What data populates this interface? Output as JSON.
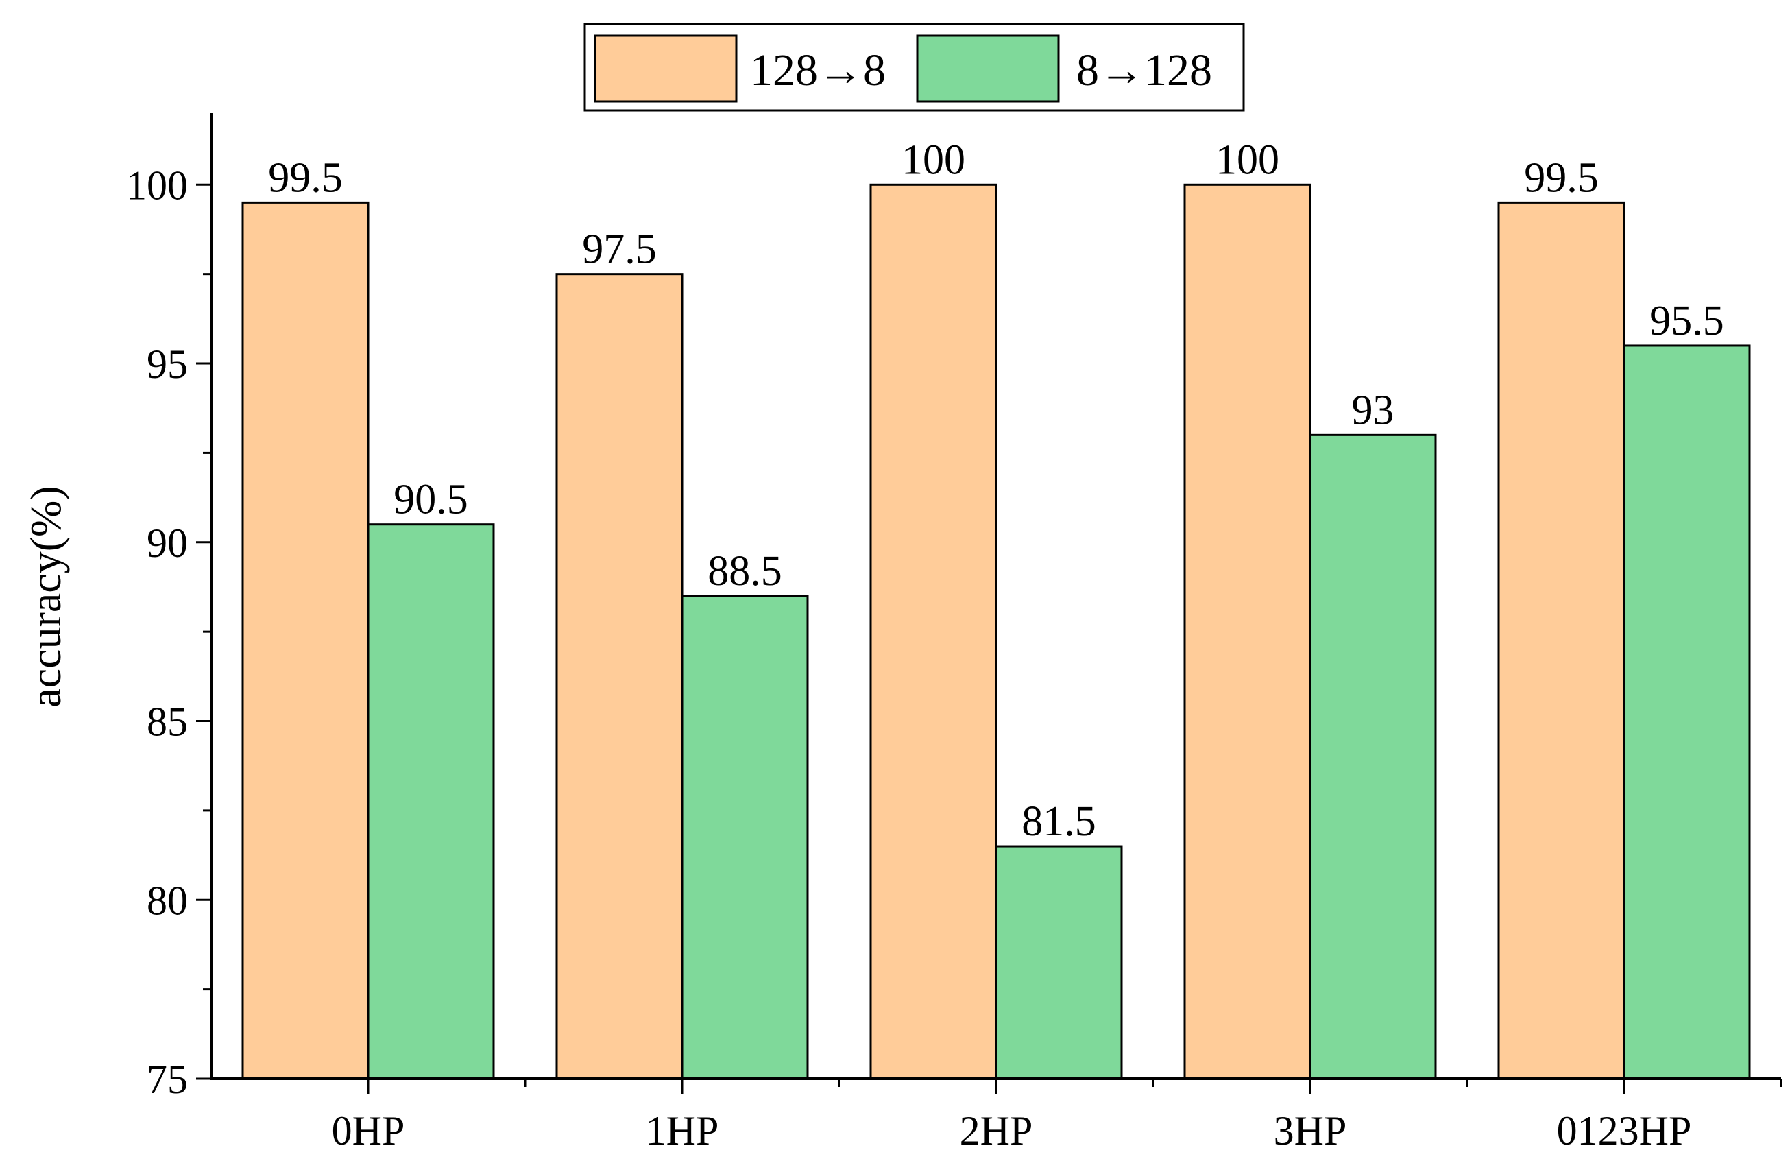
{
  "chart_data": {
    "type": "bar",
    "title": "",
    "xlabel": "",
    "ylabel": "accuracy(%)",
    "categories": [
      "0HP",
      "1HP",
      "2HP",
      "3HP",
      "0123HP"
    ],
    "series": [
      {
        "name": "128→8",
        "color": "#FFCC99",
        "values": [
          99.5,
          97.5,
          100,
          100,
          99.5
        ]
      },
      {
        "name": "8→128",
        "color": "#7FD99A",
        "values": [
          90.5,
          88.5,
          81.5,
          93,
          95.5
        ]
      }
    ],
    "ylim": [
      75,
      102
    ],
    "yticks": [
      75,
      80,
      85,
      90,
      95,
      100
    ],
    "grid": false,
    "legend_position": "top-center"
  }
}
